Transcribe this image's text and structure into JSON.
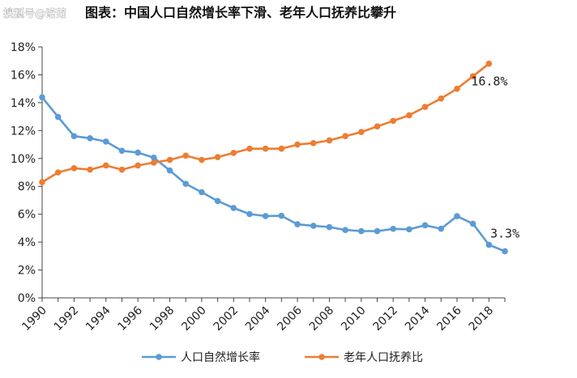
{
  "watermark": "搜狐号@诺茹",
  "chart_data": {
    "type": "line",
    "title": "图表：中国人口自然增长率下滑、老年人口抚养比攀升",
    "xlabel": "",
    "ylabel": "",
    "x_tick_labels": [
      "1990",
      "1992",
      "1994",
      "1996",
      "1998",
      "2000",
      "2002",
      "2004",
      "2006",
      "2008",
      "2010",
      "2012",
      "2014",
      "2016",
      "2018"
    ],
    "y_tick_labels": [
      "0%",
      "2%",
      "4%",
      "6%",
      "8%",
      "10%",
      "12%",
      "14%",
      "16%",
      "18%"
    ],
    "xlim": [
      1990,
      2019
    ],
    "ylim": [
      0,
      18
    ],
    "grid": false,
    "legend_position": "bottom",
    "series": [
      {
        "name": "人口自然增长率",
        "color": "#5B9BD5",
        "x": [
          1990,
          1991,
          1992,
          1993,
          1994,
          1995,
          1996,
          1997,
          1998,
          1999,
          2000,
          2001,
          2002,
          2003,
          2004,
          2005,
          2006,
          2007,
          2008,
          2009,
          2010,
          2011,
          2012,
          2013,
          2014,
          2015,
          2016,
          2017,
          2018,
          2019
        ],
        "values": [
          14.39,
          12.98,
          11.6,
          11.45,
          11.21,
          10.55,
          10.42,
          10.06,
          9.14,
          8.18,
          7.58,
          6.95,
          6.45,
          6.01,
          5.87,
          5.89,
          5.28,
          5.17,
          5.08,
          4.87,
          4.79,
          4.79,
          4.95,
          4.92,
          5.21,
          4.96,
          5.86,
          5.32,
          3.81,
          3.34
        ],
        "end_label": "3.3%"
      },
      {
        "name": "老年人口抚养比",
        "color": "#ED7D31",
        "x": [
          1990,
          1991,
          1992,
          1993,
          1994,
          1995,
          1996,
          1997,
          1998,
          1999,
          2000,
          2001,
          2002,
          2003,
          2004,
          2005,
          2006,
          2007,
          2008,
          2009,
          2010,
          2011,
          2012,
          2013,
          2014,
          2015,
          2016,
          2017,
          2018
        ],
        "values": [
          8.3,
          9.0,
          9.3,
          9.2,
          9.5,
          9.2,
          9.5,
          9.7,
          9.9,
          10.2,
          9.9,
          10.1,
          10.4,
          10.7,
          10.7,
          10.7,
          11.0,
          11.1,
          11.3,
          11.6,
          11.9,
          12.3,
          12.7,
          13.1,
          13.7,
          14.3,
          15.0,
          15.9,
          16.8
        ],
        "end_label": "16.8%"
      }
    ]
  }
}
